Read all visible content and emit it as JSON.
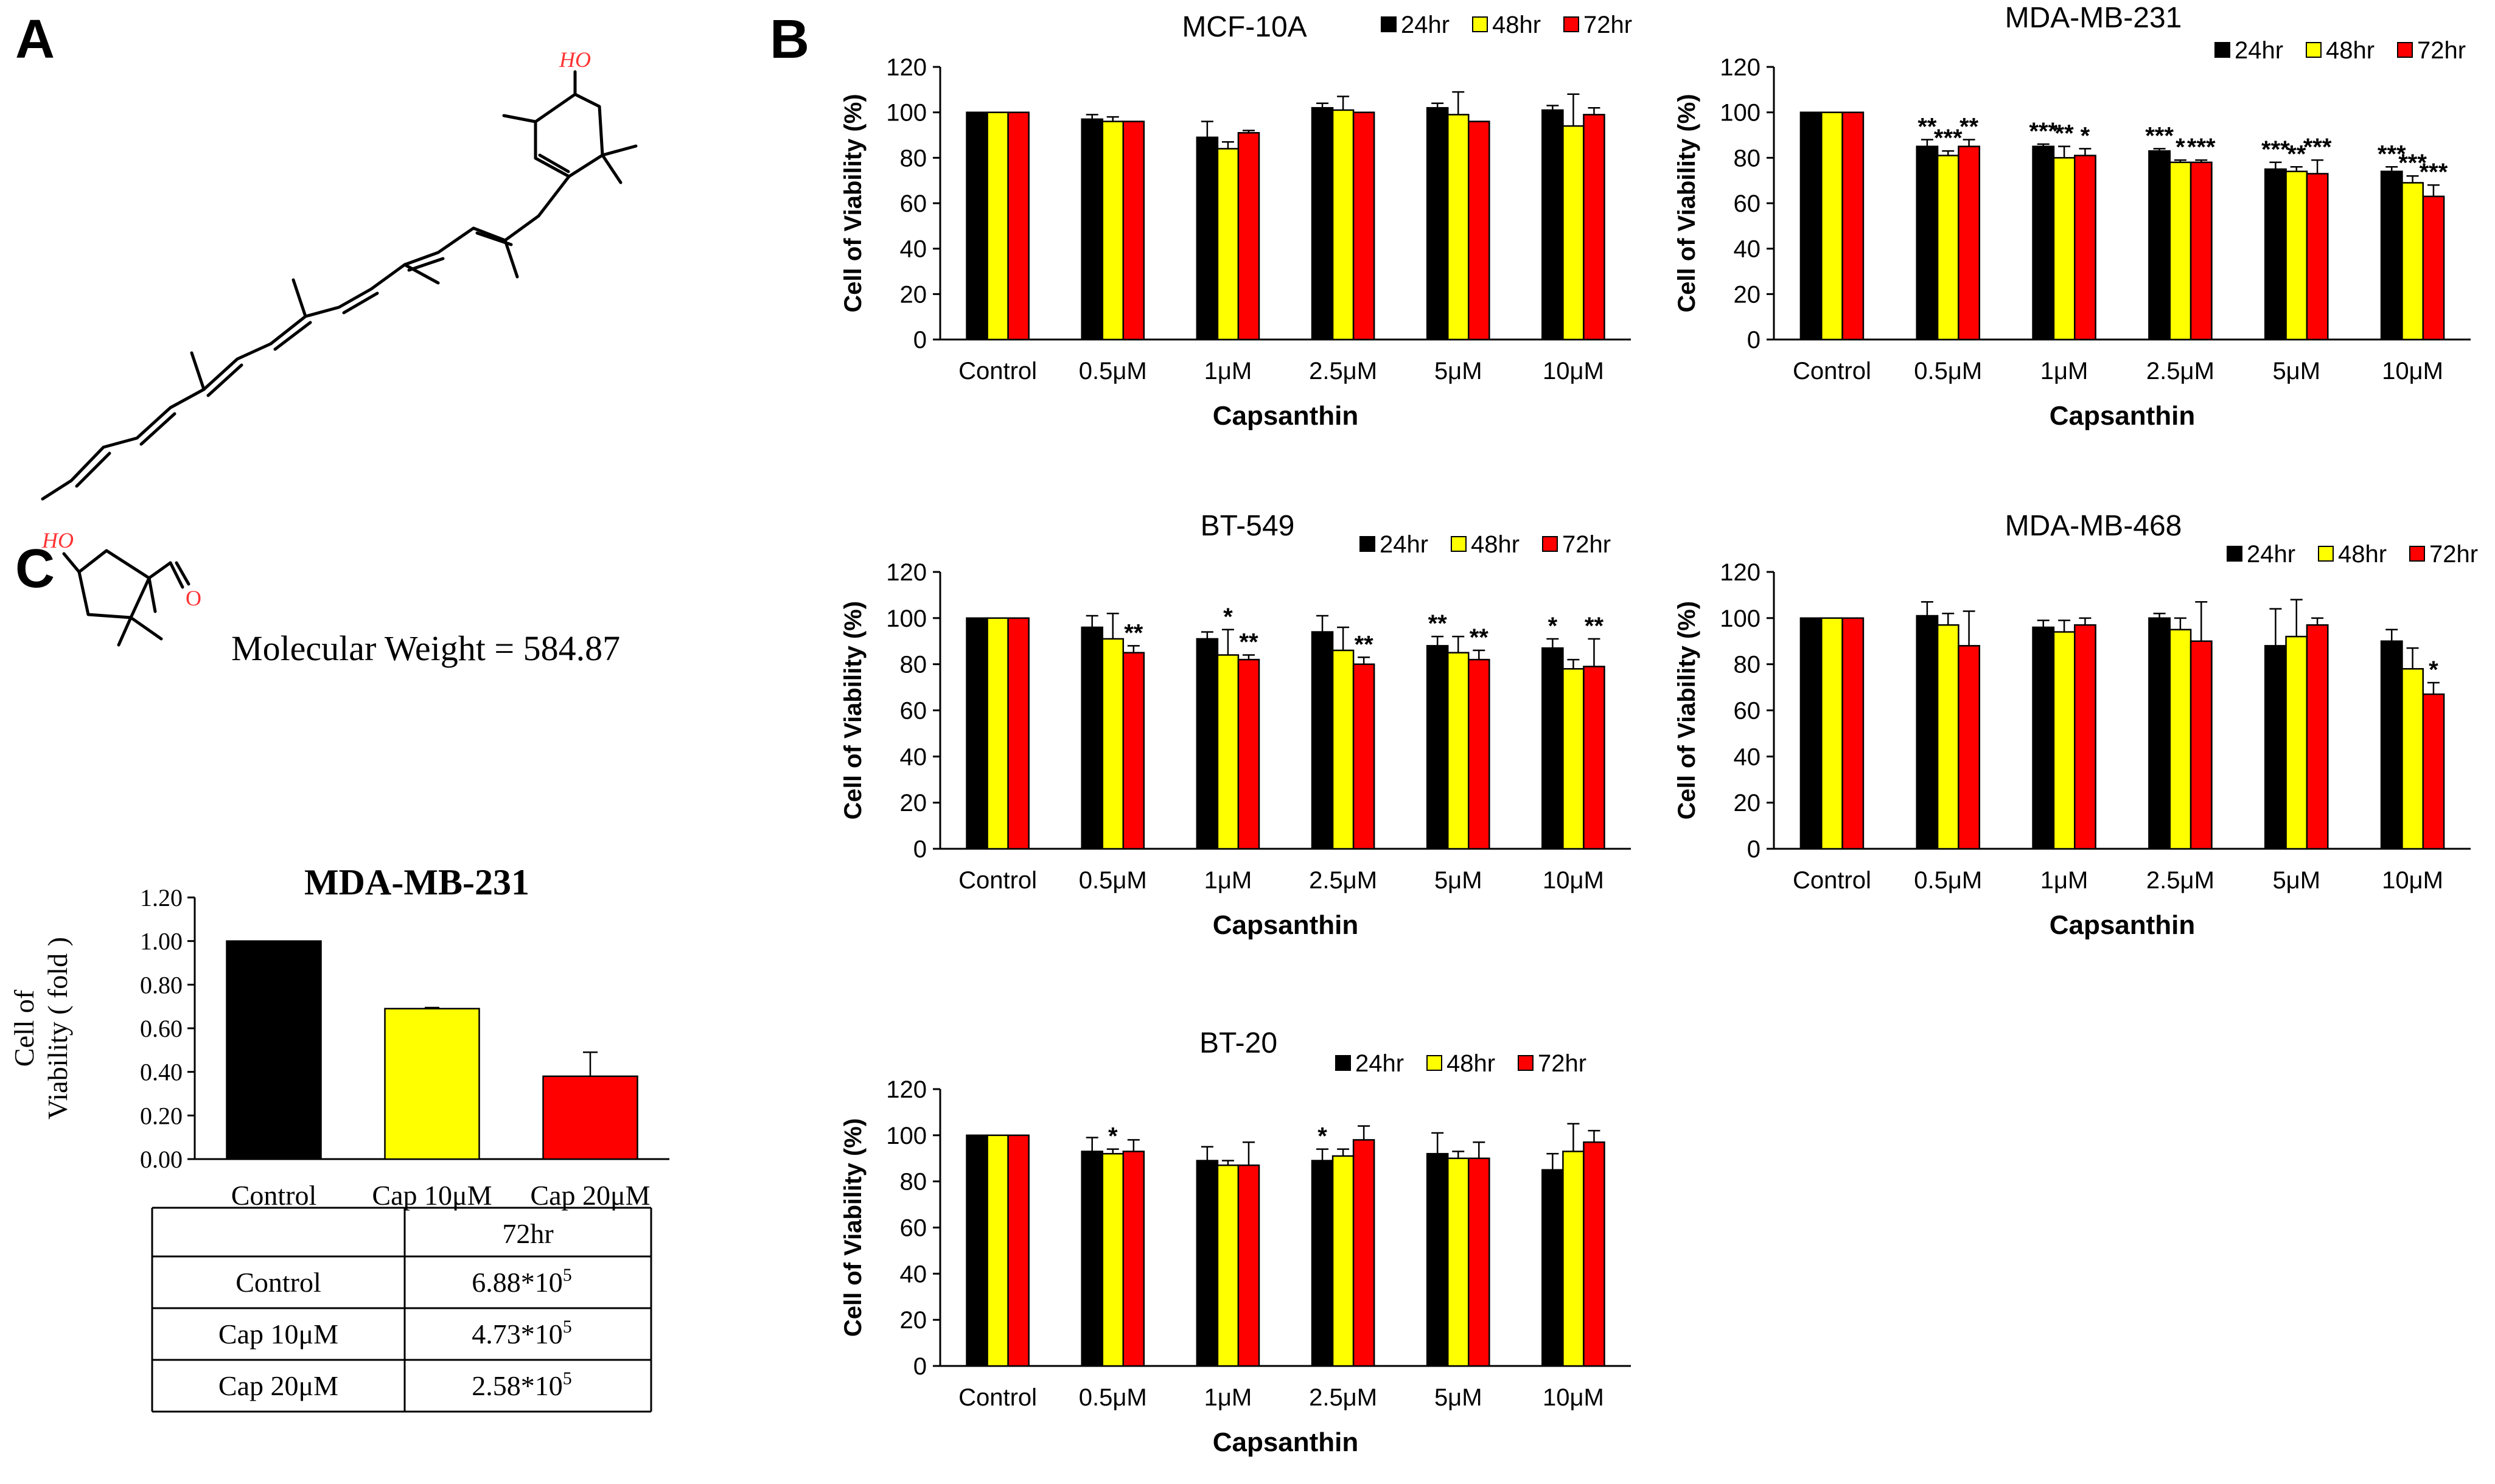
{
  "panels": {
    "A": "A",
    "B": "B",
    "C": "C"
  },
  "molecule": {
    "hydroxyl_label_top": "HO",
    "hydroxyl_label_left": "HO",
    "carbonyl_label": "O",
    "molecular_weight": "Molecular  Weight = 584.87"
  },
  "colors": {
    "24hr": "#000000",
    "48hr": "#ffff00",
    "72hr": "#ff0000",
    "hetero": "#ff3333"
  },
  "chart_data": [
    {
      "id": "mcf10a",
      "type": "bar",
      "title": "MCF-10A",
      "xlabel": "Capsanthin",
      "ylabel": "Cell of Viability (%)",
      "ylim": [
        0,
        120
      ],
      "yticks": [
        "0",
        "20",
        "40",
        "60",
        "80",
        "100",
        "120"
      ],
      "categories": [
        "Control",
        "0.5μM",
        "1μM",
        "2.5μM",
        "5μM",
        "10μM"
      ],
      "series": [
        {
          "name": "24hr",
          "values": [
            100,
            97,
            89,
            102,
            102,
            101
          ],
          "errors": [
            0,
            2,
            7,
            2,
            2,
            2
          ]
        },
        {
          "name": "48hr",
          "values": [
            100,
            96,
            84,
            101,
            99,
            94
          ],
          "errors": [
            0,
            2,
            3,
            6,
            10,
            14
          ]
        },
        {
          "name": "72hr",
          "values": [
            100,
            96,
            91,
            100,
            96,
            99
          ],
          "errors": [
            0,
            0,
            1,
            0,
            0,
            3
          ]
        }
      ],
      "significance": [
        [
          "",
          "",
          "",
          "",
          "",
          ""
        ],
        [
          "",
          "",
          "",
          "",
          "",
          ""
        ],
        [
          "",
          "",
          "",
          "",
          "",
          ""
        ]
      ]
    },
    {
      "id": "mda231",
      "type": "bar",
      "title": "MDA-MB-231",
      "xlabel": "Capsanthin",
      "ylabel": "Cell of Viability (%)",
      "ylim": [
        0,
        120
      ],
      "yticks": [
        "0",
        "20",
        "40",
        "60",
        "80",
        "100",
        "120"
      ],
      "categories": [
        "Control",
        "0.5μM",
        "1μM",
        "2.5μM",
        "5μM",
        "10μM"
      ],
      "series": [
        {
          "name": "24hr",
          "values": [
            100,
            85,
            85,
            83,
            75,
            74
          ],
          "errors": [
            0,
            3,
            1,
            1,
            3,
            2
          ]
        },
        {
          "name": "48hr",
          "values": [
            100,
            81,
            80,
            78,
            74,
            69
          ],
          "errors": [
            0,
            2,
            5,
            1,
            2,
            3
          ]
        },
        {
          "name": "72hr",
          "values": [
            100,
            85,
            81,
            78,
            73,
            63
          ],
          "errors": [
            0,
            3,
            3,
            1,
            6,
            5
          ]
        }
      ],
      "significance": [
        [
          "",
          "**",
          "***",
          "***",
          "***",
          "***"
        ],
        [
          "",
          "***",
          "**",
          "*",
          "**",
          "***"
        ],
        [
          "",
          "**",
          "*",
          "***",
          "***",
          "***"
        ]
      ]
    },
    {
      "id": "bt549",
      "type": "bar",
      "title": "BT-549",
      "xlabel": "Capsanthin",
      "ylabel": "Cell of Viability (%)",
      "ylim": [
        0,
        120
      ],
      "yticks": [
        "0",
        "20",
        "40",
        "60",
        "80",
        "100",
        "120"
      ],
      "categories": [
        "Control",
        "0.5μM",
        "1μM",
        "2.5μM",
        "5μM",
        "10μM"
      ],
      "series": [
        {
          "name": "24hr",
          "values": [
            100,
            96,
            91,
            94,
            88,
            87
          ],
          "errors": [
            0,
            5,
            3,
            7,
            4,
            4
          ]
        },
        {
          "name": "48hr",
          "values": [
            100,
            91,
            84,
            86,
            85,
            78
          ],
          "errors": [
            0,
            11,
            11,
            10,
            7,
            4
          ]
        },
        {
          "name": "72hr",
          "values": [
            100,
            85,
            82,
            80,
            82,
            79
          ],
          "errors": [
            0,
            3,
            2,
            3,
            4,
            12
          ]
        }
      ],
      "significance": [
        [
          "",
          "",
          "",
          "",
          "**",
          "*"
        ],
        [
          "",
          "",
          "*",
          "",
          "",
          ""
        ],
        [
          "",
          "**",
          "**",
          "**",
          "**",
          "**"
        ]
      ]
    },
    {
      "id": "mda468",
      "type": "bar",
      "title": "MDA-MB-468",
      "xlabel": "Capsanthin",
      "ylabel": "Cell of Viability (%)",
      "ylim": [
        0,
        120
      ],
      "yticks": [
        "0",
        "20",
        "40",
        "60",
        "80",
        "100",
        "120"
      ],
      "categories": [
        "Control",
        "0.5μM",
        "1μM",
        "2.5μM",
        "5μM",
        "10μM"
      ],
      "series": [
        {
          "name": "24hr",
          "values": [
            100,
            101,
            96,
            100,
            88,
            90
          ],
          "errors": [
            0,
            6,
            3,
            2,
            16,
            5
          ]
        },
        {
          "name": "48hr",
          "values": [
            100,
            97,
            94,
            95,
            92,
            78
          ],
          "errors": [
            0,
            5,
            5,
            5,
            16,
            9
          ]
        },
        {
          "name": "72hr",
          "values": [
            100,
            88,
            97,
            90,
            97,
            67
          ],
          "errors": [
            0,
            15,
            3,
            17,
            3,
            5
          ]
        }
      ],
      "significance": [
        [
          "",
          "",
          "",
          "",
          "",
          ""
        ],
        [
          "",
          "",
          "",
          "",
          "",
          ""
        ],
        [
          "",
          "",
          "",
          "",
          "",
          "*"
        ]
      ]
    },
    {
      "id": "bt20",
      "type": "bar",
      "title": "BT-20",
      "xlabel": "Capsanthin",
      "ylabel": "Cell of Viability (%)",
      "ylim": [
        0,
        120
      ],
      "yticks": [
        "0",
        "20",
        "40",
        "60",
        "80",
        "100",
        "120"
      ],
      "categories": [
        "Control",
        "0.5μM",
        "1μM",
        "2.5μM",
        "5μM",
        "10μM"
      ],
      "series": [
        {
          "name": "24hr",
          "values": [
            100,
            93,
            89,
            89,
            92,
            85
          ],
          "errors": [
            0,
            6,
            6,
            5,
            9,
            7
          ]
        },
        {
          "name": "48hr",
          "values": [
            100,
            92,
            87,
            91,
            90,
            93
          ],
          "errors": [
            0,
            2,
            2,
            3,
            3,
            12
          ]
        },
        {
          "name": "72hr",
          "values": [
            100,
            93,
            87,
            98,
            90,
            97
          ],
          "errors": [
            0,
            5,
            10,
            6,
            7,
            5
          ]
        }
      ],
      "significance": [
        [
          "",
          "",
          "",
          "*",
          "",
          ""
        ],
        [
          "",
          "*",
          "",
          "",
          "",
          ""
        ],
        [
          "",
          "",
          "",
          "",
          "",
          ""
        ]
      ]
    },
    {
      "id": "fold",
      "type": "bar",
      "title": "MDA-MB-231",
      "ylabel_line1": "Cell of",
      "ylabel_line2": "Viability ( fold )",
      "ylim": [
        0,
        1.2
      ],
      "yticks": [
        "0.00",
        "0.20",
        "0.40",
        "0.60",
        "0.80",
        "1.00",
        "1.20"
      ],
      "categories": [
        "Control",
        "Cap 10μM",
        "Cap 20μM"
      ],
      "values": [
        1.0,
        0.69,
        0.38
      ],
      "errors": [
        0,
        0.005,
        0.11
      ],
      "colors": [
        "#000000",
        "#ffff00",
        "#ff0000"
      ]
    }
  ],
  "cell_table": {
    "header": [
      "",
      "72hr"
    ],
    "rows": [
      {
        "label": "Control",
        "mantissa": "6.88*10",
        "exp": "5"
      },
      {
        "label": "Cap 10μM",
        "mantissa": "4.73*10",
        "exp": "5"
      },
      {
        "label": "Cap 20μM",
        "mantissa": "2.58*10",
        "exp": "5"
      }
    ]
  }
}
